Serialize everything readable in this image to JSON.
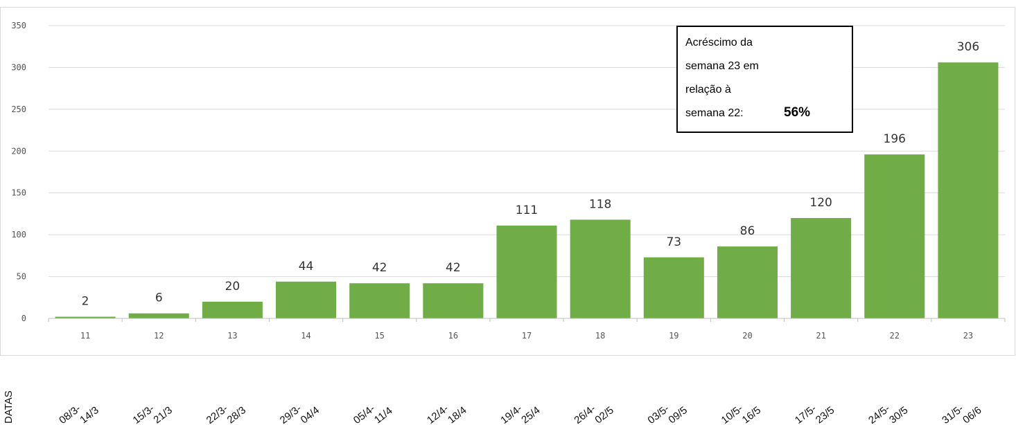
{
  "chart_data": {
    "type": "bar",
    "categories": [
      "11",
      "12",
      "13",
      "14",
      "15",
      "16",
      "17",
      "18",
      "19",
      "20",
      "21",
      "22",
      "23"
    ],
    "values": [
      2,
      6,
      20,
      44,
      42,
      42,
      111,
      118,
      73,
      86,
      120,
      196,
      306
    ],
    "ylim": [
      0,
      350
    ],
    "yticks": [
      "0",
      "50",
      "100",
      "150",
      "200",
      "250",
      "300",
      "350"
    ],
    "grid": true,
    "bar_color": "#70ad47",
    "xlabel": "DATAS",
    "dates": [
      [
        "08/3-",
        "14/3"
      ],
      [
        "15/3-",
        "21/3"
      ],
      [
        "22/3-",
        "28/3"
      ],
      [
        "29/3-",
        "04/4"
      ],
      [
        "05/4-",
        "11/4"
      ],
      [
        "12/4-",
        "18/4"
      ],
      [
        "19/4-",
        "25/4"
      ],
      [
        "26/4-",
        "02/5"
      ],
      [
        "03/5-",
        "09/5"
      ],
      [
        "10/5-",
        "16/5"
      ],
      [
        "17/5-",
        "23/5"
      ],
      [
        "24/5-",
        "30/5"
      ],
      [
        "31/5-",
        "06/6"
      ]
    ],
    "annotation": {
      "lines": [
        "Acréscimo da",
        "semana 23 em",
        "relação à",
        "semana 22:"
      ],
      "highlight": "56%"
    }
  }
}
